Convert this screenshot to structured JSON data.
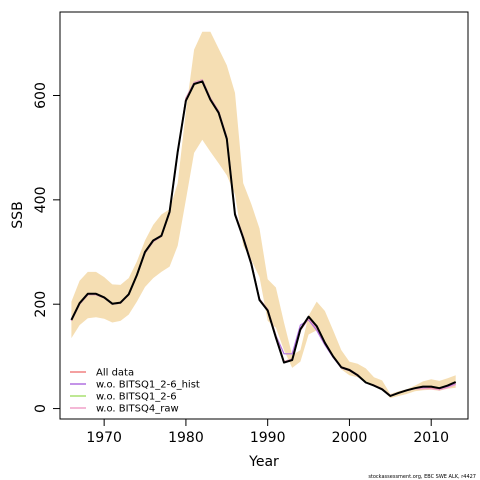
{
  "chart_data": {
    "type": "line",
    "xlabel": "Year",
    "ylabel": "SSB",
    "xlim": [
      1964.6,
      2014.5
    ],
    "ylim": [
      -20,
      760
    ],
    "xticks": [
      1970,
      1980,
      1990,
      2000,
      2010
    ],
    "yticks": [
      0,
      200,
      400,
      600
    ],
    "x": [
      1966,
      1967,
      1968,
      1969,
      1970,
      1971,
      1972,
      1973,
      1974,
      1975,
      1976,
      1977,
      1978,
      1979,
      1980,
      1981,
      1982,
      1983,
      1984,
      1985,
      1986,
      1987,
      1988,
      1989,
      1990,
      1991,
      1992,
      1993,
      1994,
      1995,
      1996,
      1997,
      1998,
      1999,
      2000,
      2001,
      2002,
      2003,
      2004,
      2005,
      2006,
      2007,
      2008,
      2009,
      2010,
      2011,
      2012,
      2013
    ],
    "band": {
      "color": "#f5deb3",
      "lower": [
        135,
        160,
        173,
        175,
        172,
        165,
        168,
        180,
        205,
        233,
        250,
        262,
        272,
        312,
        400,
        490,
        515,
        492,
        470,
        447,
        410,
        312,
        285,
        252,
        168,
        155,
        112,
        78,
        90,
        142,
        150,
        130,
        100,
        75,
        64,
        60,
        53,
        42,
        38,
        20,
        24,
        28,
        33,
        35,
        36,
        34,
        38,
        40
      ],
      "upper": [
        205,
        245,
        262,
        262,
        252,
        238,
        237,
        250,
        282,
        322,
        352,
        372,
        382,
        432,
        570,
        688,
        722,
        722,
        690,
        658,
        605,
        432,
        392,
        345,
        248,
        232,
        165,
        102,
        112,
        178,
        205,
        187,
        150,
        112,
        90,
        86,
        77,
        60,
        54,
        28,
        33,
        37,
        44,
        52,
        56,
        53,
        58,
        64
      ]
    },
    "series": [
      {
        "name": "All data",
        "color": "#f08080",
        "values": [
          168,
          200,
          218,
          218,
          212,
          200,
          202,
          218,
          255,
          298,
          320,
          330,
          375,
          490,
          595,
          625,
          630,
          595,
          570,
          520,
          375,
          330,
          280,
          210,
          190,
          140,
          90,
          95,
          150,
          172,
          155,
          125,
          100,
          80,
          75,
          65,
          50,
          45,
          38,
          25,
          30,
          35,
          38,
          38,
          40,
          36,
          42,
          48
        ]
      },
      {
        "name": "w.o. BITSQ1_2-6_hist",
        "color": "#b070e0",
        "values": [
          168,
          200,
          218,
          218,
          212,
          200,
          202,
          218,
          255,
          298,
          320,
          330,
          375,
          490,
          595,
          625,
          630,
          595,
          570,
          520,
          375,
          330,
          280,
          210,
          190,
          140,
          105,
          105,
          160,
          170,
          150,
          122,
          98,
          78,
          73,
          63,
          50,
          44,
          38,
          25,
          30,
          35,
          38,
          40,
          42,
          38,
          42,
          47
        ]
      },
      {
        "name": "w.o. BITSQ1_2-6",
        "color": "#a8e070",
        "values": [
          168,
          200,
          218,
          218,
          212,
          200,
          202,
          218,
          255,
          298,
          320,
          330,
          375,
          490,
          595,
          625,
          630,
          595,
          570,
          520,
          375,
          330,
          280,
          210,
          190,
          140,
          90,
          95,
          152,
          174,
          157,
          126,
          101,
          80,
          75,
          65,
          51,
          45,
          38,
          25,
          30,
          35,
          39,
          42,
          42,
          40,
          44,
          50
        ]
      },
      {
        "name": "w.o. BITSQ4_raw",
        "color": "#f0a0c8",
        "values": [
          168,
          200,
          218,
          218,
          212,
          200,
          202,
          218,
          255,
          298,
          320,
          330,
          375,
          490,
          595,
          625,
          630,
          595,
          570,
          520,
          375,
          330,
          280,
          210,
          190,
          140,
          90,
          95,
          150,
          172,
          155,
          125,
          100,
          80,
          75,
          65,
          50,
          45,
          38,
          25,
          30,
          35,
          38,
          38,
          38,
          36,
          40,
          46
        ]
      },
      {
        "values": [
          170,
          202,
          220,
          220,
          213,
          201,
          203,
          219,
          256,
          300,
          322,
          331,
          377,
          492,
          590,
          622,
          627,
          592,
          567,
          517,
          372,
          327,
          277,
          208,
          188,
          136,
          88,
          93,
          152,
          176,
          158,
          126,
          100,
          79,
          74,
          64,
          50,
          44,
          37,
          24,
          30,
          35,
          39,
          42,
          42,
          39,
          44,
          51
        ]
      }
    ],
    "credit": "stockassessment.org, EBC SWE ALK, r4427"
  }
}
